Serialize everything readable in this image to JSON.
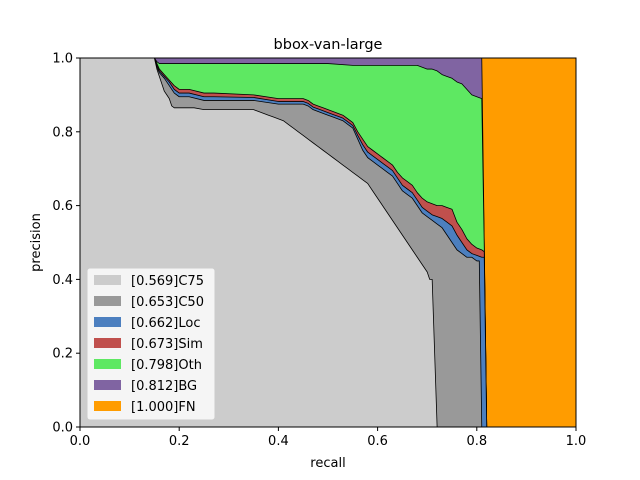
{
  "chart_data": {
    "type": "area",
    "title": "bbox-van-large",
    "xlabel": "recall",
    "ylabel": "precision",
    "xlim": [
      0,
      1
    ],
    "ylim": [
      0,
      1
    ],
    "xticks": [
      "0.0",
      "0.2",
      "0.4",
      "0.6",
      "0.8",
      "1.0"
    ],
    "yticks": [
      "0.0",
      "0.2",
      "0.4",
      "0.6",
      "0.8",
      "1.0"
    ],
    "grid": false,
    "legend_position": "lower-left",
    "series": [
      {
        "name": "[0.569]C75",
        "color": "#cccccc",
        "points": [
          [
            0,
            1.0
          ],
          [
            0.15,
            1.0
          ],
          [
            0.155,
            0.97
          ],
          [
            0.16,
            0.95
          ],
          [
            0.165,
            0.93
          ],
          [
            0.17,
            0.91
          ],
          [
            0.175,
            0.9
          ],
          [
            0.18,
            0.89
          ],
          [
            0.185,
            0.87
          ],
          [
            0.19,
            0.865
          ],
          [
            0.2,
            0.865
          ],
          [
            0.23,
            0.865
          ],
          [
            0.25,
            0.86
          ],
          [
            0.27,
            0.86
          ],
          [
            0.35,
            0.86
          ],
          [
            0.36,
            0.855
          ],
          [
            0.37,
            0.85
          ],
          [
            0.38,
            0.845
          ],
          [
            0.39,
            0.84
          ],
          [
            0.4,
            0.835
          ],
          [
            0.41,
            0.83
          ],
          [
            0.42,
            0.82
          ],
          [
            0.43,
            0.81
          ],
          [
            0.44,
            0.8
          ],
          [
            0.45,
            0.79
          ],
          [
            0.46,
            0.78
          ],
          [
            0.47,
            0.77
          ],
          [
            0.48,
            0.76
          ],
          [
            0.49,
            0.75
          ],
          [
            0.5,
            0.74
          ],
          [
            0.51,
            0.73
          ],
          [
            0.52,
            0.72
          ],
          [
            0.53,
            0.71
          ],
          [
            0.54,
            0.7
          ],
          [
            0.55,
            0.69
          ],
          [
            0.56,
            0.68
          ],
          [
            0.57,
            0.67
          ],
          [
            0.58,
            0.66
          ],
          [
            0.59,
            0.64
          ],
          [
            0.6,
            0.62
          ],
          [
            0.61,
            0.6
          ],
          [
            0.62,
            0.58
          ],
          [
            0.63,
            0.56
          ],
          [
            0.64,
            0.54
          ],
          [
            0.65,
            0.52
          ],
          [
            0.66,
            0.5
          ],
          [
            0.67,
            0.48
          ],
          [
            0.68,
            0.46
          ],
          [
            0.69,
            0.44
          ],
          [
            0.7,
            0.42
          ],
          [
            0.705,
            0.4
          ],
          [
            0.71,
            0.4
          ],
          [
            0.72,
            0.0
          ]
        ]
      },
      {
        "name": "[0.653]C50",
        "color": "#999999",
        "points": [
          [
            0,
            1.0
          ],
          [
            0.15,
            1.0
          ],
          [
            0.155,
            0.975
          ],
          [
            0.16,
            0.96
          ],
          [
            0.17,
            0.945
          ],
          [
            0.18,
            0.925
          ],
          [
            0.19,
            0.905
          ],
          [
            0.2,
            0.895
          ],
          [
            0.22,
            0.895
          ],
          [
            0.25,
            0.885
          ],
          [
            0.27,
            0.885
          ],
          [
            0.35,
            0.885
          ],
          [
            0.4,
            0.875
          ],
          [
            0.45,
            0.875
          ],
          [
            0.46,
            0.87
          ],
          [
            0.47,
            0.86
          ],
          [
            0.48,
            0.855
          ],
          [
            0.49,
            0.85
          ],
          [
            0.5,
            0.845
          ],
          [
            0.51,
            0.84
          ],
          [
            0.52,
            0.835
          ],
          [
            0.53,
            0.83
          ],
          [
            0.54,
            0.82
          ],
          [
            0.55,
            0.81
          ],
          [
            0.56,
            0.78
          ],
          [
            0.57,
            0.75
          ],
          [
            0.58,
            0.73
          ],
          [
            0.59,
            0.72
          ],
          [
            0.6,
            0.71
          ],
          [
            0.61,
            0.7
          ],
          [
            0.62,
            0.69
          ],
          [
            0.63,
            0.68
          ],
          [
            0.64,
            0.66
          ],
          [
            0.65,
            0.64
          ],
          [
            0.66,
            0.63
          ],
          [
            0.67,
            0.62
          ],
          [
            0.68,
            0.6
          ],
          [
            0.69,
            0.58
          ],
          [
            0.7,
            0.57
          ],
          [
            0.71,
            0.56
          ],
          [
            0.72,
            0.55
          ],
          [
            0.73,
            0.54
          ],
          [
            0.74,
            0.52
          ],
          [
            0.75,
            0.5
          ],
          [
            0.76,
            0.48
          ],
          [
            0.77,
            0.47
          ],
          [
            0.78,
            0.46
          ],
          [
            0.79,
            0.46
          ],
          [
            0.8,
            0.45
          ],
          [
            0.805,
            0.45
          ],
          [
            0.81,
            0.0
          ]
        ]
      },
      {
        "name": "[0.662]Loc",
        "color": "#4c7fbf",
        "points": [
          [
            0,
            1.0
          ],
          [
            0.15,
            1.0
          ],
          [
            0.155,
            0.98
          ],
          [
            0.16,
            0.965
          ],
          [
            0.17,
            0.95
          ],
          [
            0.18,
            0.935
          ],
          [
            0.19,
            0.915
          ],
          [
            0.2,
            0.905
          ],
          [
            0.22,
            0.905
          ],
          [
            0.25,
            0.895
          ],
          [
            0.27,
            0.895
          ],
          [
            0.35,
            0.893
          ],
          [
            0.4,
            0.882
          ],
          [
            0.45,
            0.882
          ],
          [
            0.46,
            0.877
          ],
          [
            0.47,
            0.867
          ],
          [
            0.48,
            0.862
          ],
          [
            0.49,
            0.857
          ],
          [
            0.5,
            0.852
          ],
          [
            0.51,
            0.847
          ],
          [
            0.52,
            0.842
          ],
          [
            0.53,
            0.837
          ],
          [
            0.54,
            0.827
          ],
          [
            0.55,
            0.817
          ],
          [
            0.56,
            0.79
          ],
          [
            0.57,
            0.765
          ],
          [
            0.58,
            0.745
          ],
          [
            0.59,
            0.735
          ],
          [
            0.6,
            0.725
          ],
          [
            0.61,
            0.715
          ],
          [
            0.62,
            0.705
          ],
          [
            0.63,
            0.695
          ],
          [
            0.64,
            0.675
          ],
          [
            0.65,
            0.655
          ],
          [
            0.66,
            0.645
          ],
          [
            0.67,
            0.635
          ],
          [
            0.68,
            0.615
          ],
          [
            0.69,
            0.595
          ],
          [
            0.7,
            0.585
          ],
          [
            0.71,
            0.575
          ],
          [
            0.72,
            0.57
          ],
          [
            0.73,
            0.565
          ],
          [
            0.74,
            0.555
          ],
          [
            0.75,
            0.545
          ],
          [
            0.76,
            0.52
          ],
          [
            0.77,
            0.5
          ],
          [
            0.78,
            0.48
          ],
          [
            0.79,
            0.47
          ],
          [
            0.8,
            0.465
          ],
          [
            0.81,
            0.46
          ],
          [
            0.815,
            0.46
          ],
          [
            0.82,
            0.0
          ]
        ]
      },
      {
        "name": "[0.673]Sim",
        "color": "#c0504d",
        "points": [
          [
            0,
            1.0
          ],
          [
            0.15,
            1.0
          ],
          [
            0.155,
            0.985
          ],
          [
            0.16,
            0.97
          ],
          [
            0.17,
            0.955
          ],
          [
            0.18,
            0.94
          ],
          [
            0.19,
            0.925
          ],
          [
            0.2,
            0.915
          ],
          [
            0.22,
            0.915
          ],
          [
            0.25,
            0.905
          ],
          [
            0.27,
            0.905
          ],
          [
            0.35,
            0.9
          ],
          [
            0.4,
            0.89
          ],
          [
            0.45,
            0.89
          ],
          [
            0.46,
            0.885
          ],
          [
            0.47,
            0.875
          ],
          [
            0.48,
            0.87
          ],
          [
            0.49,
            0.865
          ],
          [
            0.5,
            0.86
          ],
          [
            0.51,
            0.855
          ],
          [
            0.52,
            0.85
          ],
          [
            0.53,
            0.845
          ],
          [
            0.54,
            0.835
          ],
          [
            0.55,
            0.825
          ],
          [
            0.56,
            0.8
          ],
          [
            0.57,
            0.78
          ],
          [
            0.58,
            0.76
          ],
          [
            0.59,
            0.75
          ],
          [
            0.6,
            0.74
          ],
          [
            0.61,
            0.73
          ],
          [
            0.62,
            0.72
          ],
          [
            0.63,
            0.71
          ],
          [
            0.64,
            0.69
          ],
          [
            0.65,
            0.675
          ],
          [
            0.66,
            0.665
          ],
          [
            0.67,
            0.655
          ],
          [
            0.68,
            0.635
          ],
          [
            0.69,
            0.62
          ],
          [
            0.7,
            0.61
          ],
          [
            0.71,
            0.605
          ],
          [
            0.72,
            0.6
          ],
          [
            0.73,
            0.6
          ],
          [
            0.74,
            0.595
          ],
          [
            0.75,
            0.59
          ],
          [
            0.76,
            0.555
          ],
          [
            0.77,
            0.535
          ],
          [
            0.78,
            0.51
          ],
          [
            0.79,
            0.495
          ],
          [
            0.8,
            0.485
          ],
          [
            0.81,
            0.48
          ],
          [
            0.815,
            0.475
          ],
          [
            0.82,
            0.0
          ]
        ]
      },
      {
        "name": "[0.798]Oth",
        "color": "#5ee862",
        "points": [
          [
            0,
            1.0
          ],
          [
            0.15,
            1.0
          ],
          [
            0.155,
            0.99
          ],
          [
            0.16,
            0.985
          ],
          [
            0.2,
            0.985
          ],
          [
            0.3,
            0.985
          ],
          [
            0.4,
            0.985
          ],
          [
            0.5,
            0.985
          ],
          [
            0.55,
            0.98
          ],
          [
            0.6,
            0.98
          ],
          [
            0.65,
            0.98
          ],
          [
            0.68,
            0.98
          ],
          [
            0.69,
            0.975
          ],
          [
            0.7,
            0.97
          ],
          [
            0.71,
            0.97
          ],
          [
            0.72,
            0.965
          ],
          [
            0.73,
            0.955
          ],
          [
            0.74,
            0.95
          ],
          [
            0.75,
            0.945
          ],
          [
            0.76,
            0.935
          ],
          [
            0.77,
            0.93
          ],
          [
            0.78,
            0.915
          ],
          [
            0.79,
            0.9
          ],
          [
            0.8,
            0.895
          ],
          [
            0.81,
            0.89
          ],
          [
            0.815,
            0.49
          ],
          [
            0.82,
            0.0
          ]
        ]
      },
      {
        "name": "[0.812]BG",
        "color": "#8064a2",
        "points": [
          [
            0,
            1.0
          ],
          [
            0.81,
            1.0
          ],
          [
            0.815,
            0.5
          ],
          [
            0.82,
            0.0
          ]
        ]
      },
      {
        "name": "[1.000]FN",
        "color": "#ff9c00",
        "points": [
          [
            0,
            1.0
          ],
          [
            1.0,
            1.0
          ],
          [
            1.0,
            0.0
          ]
        ]
      }
    ]
  }
}
